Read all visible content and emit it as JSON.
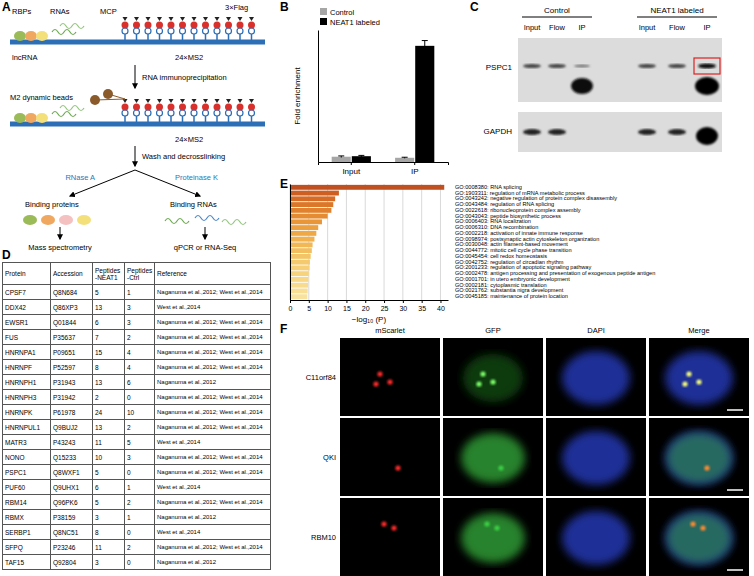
{
  "panel_labels": [
    "A",
    "B",
    "C",
    "D",
    "E",
    "F"
  ],
  "diagram": {
    "rbps": "RBPs",
    "rnas": "RNAs",
    "mcp": "MCP",
    "flag": "3×Flag",
    "lncrna": "lncRNA",
    "ms2_top": "24×MS2",
    "rip": "RNA immunoprecipitation",
    "beads": "M2 dynamic beads",
    "ms2_bottom": "24×MS2",
    "wash": "Wash and decrosslinking",
    "rnase": "RNase A",
    "proteinase": "Proteinase K",
    "binding_proteins": "Binding proteins",
    "binding_rnas": "Binding RNAs",
    "mass_spec": "Mass spectrometry",
    "qpcr": "qPCR or RNA-Seq"
  },
  "chart_data": [
    {
      "type": "bar",
      "y_label": "Fold enrichment",
      "categories": [
        "Input",
        "IP"
      ],
      "series": [
        {
          "name": "Control",
          "color": "#a6a6a6",
          "values": [
            1.0,
            0.8
          ],
          "errors": [
            0.15,
            0.1
          ]
        },
        {
          "name": "NEAT1 labeled",
          "color": "#000000",
          "values": [
            1.1,
            22.0
          ],
          "errors": [
            0.15,
            1.0
          ]
        }
      ],
      "ylim": [
        0,
        25
      ],
      "tick_labels": "x",
      "legend": "upper left"
    },
    {
      "type": "bar",
      "orientation": "horizontal",
      "x_label": "−log₁₀ (P)",
      "categories": [
        "GO:0008380: RNA splicing",
        "GO:1903311: regulation of mRNA metabolic process",
        "GO:0043242: negative regulation of protein complex disassembly",
        "GO:0043484: regulation of RNA splicing",
        "GO:0022618: ribonucleoprotein complex assembly",
        "GO:0043043: peptide biosynthetic process",
        "GO:0006403: RNA localization",
        "GO:0006310: DNA recombination",
        "GO:0002218: activation of innate immune response",
        "GO:0098974: postsynaptic actin cytoskeleton organization",
        "GO:0030048: actin filament-based movement",
        "GO:0044772: mitotic cell cycle phase transition",
        "GO:0045454: cell redox homeostasis",
        "GO:0042752: regulation of circadian rhythm",
        "GO:2001233: regulation of apoptotic signaling pathway",
        "GO:0002478: antigen processing and presentation of exogenous peptide antigen",
        "GO:0001701: in utero embryonic development",
        "GO:0002181: cytoplasmic translation",
        "GO:0021762: substantia nigra development",
        "GO:0045185: maintenance of protein location"
      ],
      "values": [
        41,
        13,
        12,
        11.5,
        11,
        10,
        8.5,
        7.5,
        7,
        6.5,
        6,
        5.8,
        5.5,
        5.3,
        5.2,
        5,
        4.9,
        4.8,
        4.7,
        4.6
      ],
      "colors": [
        "#c0501f",
        "#cd5f22",
        "#d66b26",
        "#dc7629",
        "#e1812d",
        "#e58c32",
        "#e99638",
        "#eca03f",
        "#eea946",
        "#f0b14e",
        "#f2b856",
        "#f3bf5e",
        "#f4c566",
        "#f5ca6e",
        "#f6cf76",
        "#f7d37e",
        "#f8d786",
        "#f8db8e",
        "#f9de96",
        "#f9e19e"
      ],
      "xlim": [
        0,
        42
      ],
      "xticks": [
        0,
        5,
        10,
        15,
        20,
        25,
        30,
        35,
        40
      ],
      "grid": true
    }
  ],
  "blot": {
    "groups": [
      "Control",
      "NEAT1 labeled"
    ],
    "lanes": [
      "Input",
      "Flow",
      "IP",
      "Input",
      "Flow",
      "IP"
    ],
    "proteins": [
      "PSPC1",
      "GAPDH"
    ]
  },
  "table": {
    "columns": [
      "Protein",
      "Accession",
      "Peptides -NEAT1",
      "Peptides -Ctrl",
      "Reference"
    ],
    "rows": [
      [
        "CPSF7",
        "Q8N684",
        5,
        1,
        "Naganuma et al.,2012; West et al.,2014"
      ],
      [
        "DDX42",
        "Q86XP3",
        13,
        3,
        "West et al.,2014"
      ],
      [
        "EWSR1",
        "Q01844",
        6,
        3,
        "Naganuma et al.,2012; West et al.,2014"
      ],
      [
        "FUS",
        "P35637",
        7,
        2,
        "Naganuma et al.,2012; West et al.,2014"
      ],
      [
        "HNRNPA1",
        "P09651",
        15,
        4,
        "Naganuma et al.,2012; West et al.,2014"
      ],
      [
        "HNRNPF",
        "P52597",
        8,
        4,
        "Naganuma et al.,2012; West et al.,2014"
      ],
      [
        "HNRNPH1",
        "P31943",
        13,
        6,
        "Naganuma et al.,2012"
      ],
      [
        "HNRNPH3",
        "P31942",
        2,
        0,
        "Naganuma et al.,2012; West et al.,2014"
      ],
      [
        "HNRNPK",
        "P61978",
        24,
        10,
        "Naganuma et al.,2012; West et al.,2014"
      ],
      [
        "HNRNPUL1",
        "Q9BUJ2",
        13,
        2,
        "Naganuma et al.,2012; West et al.,2014"
      ],
      [
        "MATR3",
        "P43243",
        11,
        5,
        "West et al.,2014"
      ],
      [
        "NONO",
        "Q15233",
        10,
        3,
        "Naganuma et al.,2012; West et al.,2014"
      ],
      [
        "PSPC1",
        "Q8WXF1",
        5,
        0,
        "Naganuma et al.,2012; West et al.,2014"
      ],
      [
        "PUF60",
        "Q9UHX1",
        6,
        1,
        "West et al.,2014"
      ],
      [
        "RBM14",
        "Q96PK6",
        5,
        2,
        "Naganuma et al.,2012; West et al.,2014"
      ],
      [
        "RBMX",
        "P38159",
        3,
        1,
        "Naganuma et al.,2012"
      ],
      [
        "SERBP1",
        "Q8NC51",
        8,
        0,
        "West et al.,2014"
      ],
      [
        "SFPQ",
        "P23246",
        11,
        2,
        "Naganuma et al.,2012; West et al.,2014"
      ],
      [
        "TAF15",
        "Q92804",
        3,
        0,
        "Naganuma et al.,2012"
      ]
    ]
  },
  "microscopy": {
    "channels": [
      "mScarlet",
      "GFP",
      "DAPI",
      "Merge"
    ],
    "rows": [
      "C11orf84",
      "QKI",
      "RBM10"
    ]
  }
}
